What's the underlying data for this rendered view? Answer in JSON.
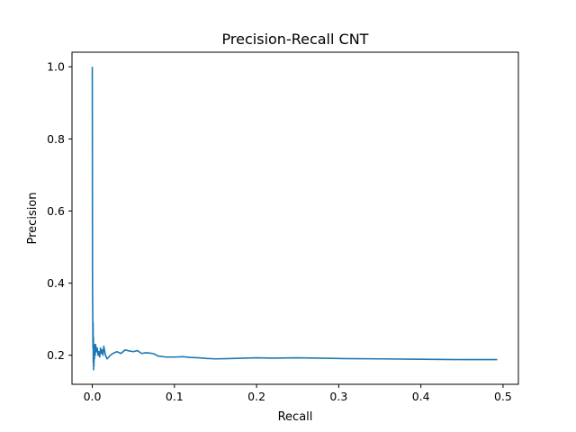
{
  "chart_data": {
    "type": "line",
    "title": "Precision-Recall CNT",
    "xlabel": "Recall",
    "ylabel": "Precision",
    "xlim": [
      -0.0247,
      0.5187
    ],
    "ylim": [
      0.1195,
      1.0405
    ],
    "xticks": [
      0.0,
      0.1,
      0.2,
      0.3,
      0.4,
      0.5
    ],
    "xtick_labels": [
      "0.0",
      "0.1",
      "0.2",
      "0.3",
      "0.4",
      "0.5"
    ],
    "yticks": [
      0.2,
      0.4,
      0.6,
      0.8,
      1.0
    ],
    "ytick_labels": [
      "0.2",
      "0.4",
      "0.6",
      "0.8",
      "1.0"
    ],
    "grid": false,
    "series": [
      {
        "color": "#1f77b4",
        "x": [
          0.0,
          0.0003,
          0.0006,
          0.0008,
          0.001,
          0.0012,
          0.0014,
          0.0016,
          0.0018,
          0.002,
          0.0023,
          0.0026,
          0.003,
          0.0035,
          0.004,
          0.005,
          0.006,
          0.007,
          0.008,
          0.009,
          0.01,
          0.011,
          0.012,
          0.013,
          0.014,
          0.016,
          0.018,
          0.02,
          0.022,
          0.025,
          0.03,
          0.035,
          0.04,
          0.045,
          0.05,
          0.055,
          0.06,
          0.065,
          0.07,
          0.075,
          0.08,
          0.09,
          0.1,
          0.11,
          0.12,
          0.13,
          0.14,
          0.15,
          0.17,
          0.2,
          0.22,
          0.25,
          0.3,
          0.35,
          0.4,
          0.45,
          0.493
        ],
        "y": [
          1.0,
          0.38,
          0.3,
          0.22,
          0.29,
          0.18,
          0.25,
          0.16,
          0.2,
          0.17,
          0.23,
          0.19,
          0.22,
          0.2,
          0.23,
          0.21,
          0.22,
          0.2,
          0.21,
          0.195,
          0.22,
          0.205,
          0.215,
          0.2,
          0.225,
          0.2,
          0.19,
          0.195,
          0.2,
          0.205,
          0.21,
          0.205,
          0.215,
          0.212,
          0.21,
          0.213,
          0.205,
          0.207,
          0.206,
          0.204,
          0.198,
          0.195,
          0.195,
          0.196,
          0.194,
          0.193,
          0.191,
          0.19,
          0.191,
          0.193,
          0.192,
          0.193,
          0.191,
          0.19,
          0.189,
          0.188,
          0.188
        ]
      }
    ]
  }
}
